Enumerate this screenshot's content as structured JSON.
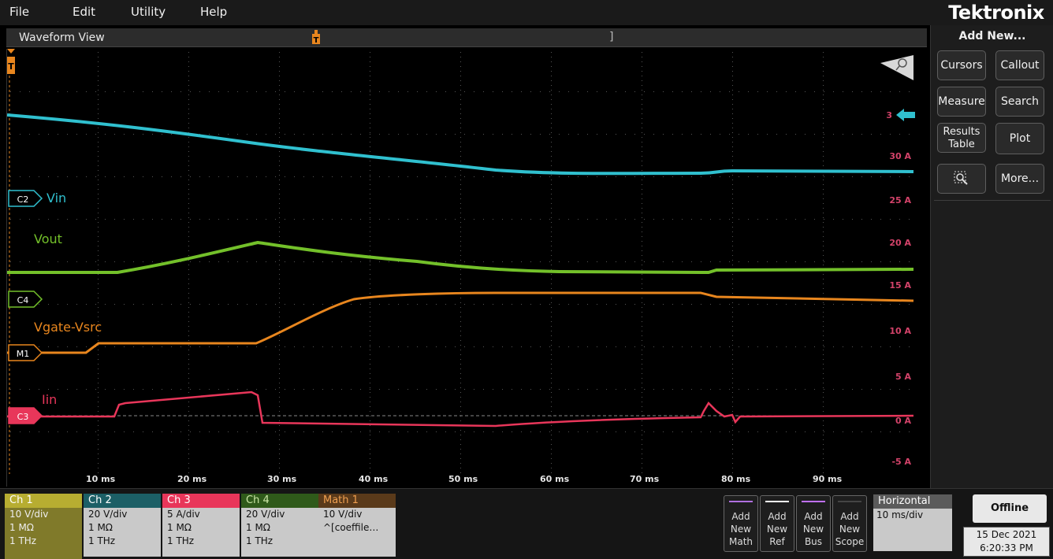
{
  "menu": {
    "file": "File",
    "edit": "Edit",
    "utility": "Utility",
    "help": "Help"
  },
  "brand": "Tektronix",
  "waveform_view": {
    "title": "Waveform View",
    "trigger_marker": "T",
    "y_axis_unit_labels": [
      "30 A",
      "25 A",
      "20 A",
      "15 A",
      "10 A",
      "5 A",
      "0 A",
      "-5 A"
    ],
    "x_axis_labels": [
      "10 ms",
      "20 ms",
      "30 ms",
      "40 ms",
      "50 ms",
      "60 ms",
      "70 ms",
      "80 ms",
      "90 ms"
    ],
    "channel_markers": {
      "c2": "C2",
      "c4": "C4",
      "m1": "M1",
      "c3": "C3",
      "trig_level": "3"
    },
    "channel_labels": {
      "vin": "Vin",
      "vout": "Vout",
      "vgate": "Vgate-Vsrc",
      "iin": "Iin"
    }
  },
  "colors": {
    "ch1": "#cfc53a",
    "ch2": "#30c0cf",
    "ch3": "#e8365a",
    "ch4": "#73c02a",
    "math1": "#e8861e"
  },
  "right_panel": {
    "title": "Add New...",
    "cursors": "Cursors",
    "callout": "Callout",
    "measure": "Measure",
    "search": "Search",
    "results_table_1": "Results",
    "results_table_2": "Table",
    "plot": "Plot",
    "more": "More...",
    "zoom_icon": "zoom-icon"
  },
  "channels": [
    {
      "name": "Ch 1",
      "scale": "10 V/div",
      "impedance": "1 MΩ",
      "bandwidth": "1 THz"
    },
    {
      "name": "Ch 2",
      "scale": "20 V/div",
      "impedance": "1 MΩ",
      "bandwidth": "1 THz"
    },
    {
      "name": "Ch 3",
      "scale": "5 A/div",
      "impedance": "1 MΩ",
      "bandwidth": "1 THz"
    },
    {
      "name": "Ch 4",
      "scale": "20 V/div",
      "impedance": "1 MΩ",
      "bandwidth": "1 THz"
    },
    {
      "name": "Math 1",
      "scale": "10 V/div",
      "expr": "^[coeffile…"
    }
  ],
  "add_buttons": {
    "math": [
      "Add",
      "New",
      "Math"
    ],
    "ref": [
      "Add",
      "New",
      "Ref"
    ],
    "bus": [
      "Add",
      "New",
      "Bus"
    ],
    "scope": [
      "Add",
      "New",
      "Scope"
    ]
  },
  "horizontal": {
    "title": "Horizontal",
    "scale": "10 ms/div"
  },
  "status": {
    "offline": "Offline",
    "date": "15 Dec 2021",
    "time": "6:20:33 PM"
  }
}
